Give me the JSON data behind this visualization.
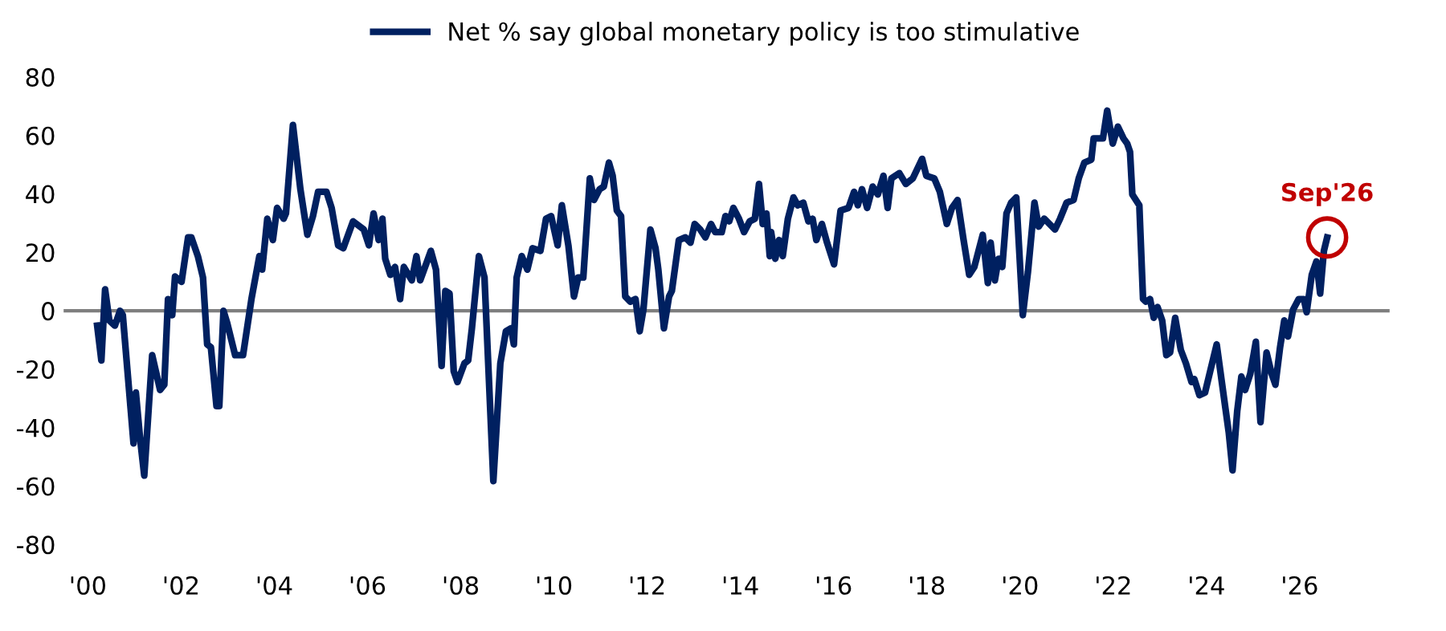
{
  "chart_data": {
    "type": "line",
    "series": [
      {
        "name": "Net % say global monetary policy is too stimulative",
        "color": "#002060",
        "x": [
          2000.2,
          2000.29,
          2000.37,
          2000.46,
          2000.58,
          2000.69,
          2000.75,
          2000.98,
          2001.03,
          2001.12,
          2001.21,
          2001.38,
          2001.55,
          2001.64,
          2001.72,
          2001.81,
          2001.87,
          2002.01,
          2002.15,
          2002.22,
          2002.36,
          2002.47,
          2002.56,
          2002.64,
          2002.76,
          2002.82,
          2002.91,
          2002.99,
          2003.16,
          2003.33,
          2003.51,
          2003.68,
          2003.74,
          2003.85,
          2003.97,
          2004.06,
          2004.2,
          2004.25,
          2004.4,
          2004.56,
          2004.71,
          2004.83,
          2004.94,
          2005.12,
          2005.23,
          2005.37,
          2005.48,
          2005.69,
          2005.92,
          2006.03,
          2006.13,
          2006.24,
          2006.32,
          2006.38,
          2006.49,
          2006.59,
          2006.7,
          2006.78,
          2006.95,
          2007.05,
          2007.13,
          2007.36,
          2007.47,
          2007.59,
          2007.67,
          2007.76,
          2007.85,
          2007.93,
          2008.08,
          2008.16,
          2008.24,
          2008.39,
          2008.51,
          2008.7,
          2008.85,
          2008.97,
          2009.08,
          2009.14,
          2009.2,
          2009.31,
          2009.43,
          2009.54,
          2009.71,
          2009.83,
          2009.94,
          2010.08,
          2010.17,
          2010.31,
          2010.43,
          2010.52,
          2010.63,
          2010.77,
          2010.86,
          2010.98,
          2011.07,
          2011.18,
          2011.26,
          2011.35,
          2011.44,
          2011.53,
          2011.64,
          2011.75,
          2011.84,
          2011.92,
          2012.07,
          2012.18,
          2012.24,
          2012.36,
          2012.47,
          2012.53,
          2012.68,
          2012.82,
          2012.93,
          2013.02,
          2013.14,
          2013.25,
          2013.37,
          2013.46,
          2013.6,
          2013.68,
          2013.76,
          2013.85,
          2013.97,
          2014.08,
          2014.2,
          2014.31,
          2014.4,
          2014.48,
          2014.56,
          2014.63,
          2014.66,
          2014.75,
          2014.83,
          2014.91,
          2015.02,
          2015.14,
          2015.23,
          2015.35,
          2015.46,
          2015.55,
          2015.63,
          2015.75,
          2015.86,
          2016.01,
          2016.15,
          2016.32,
          2016.44,
          2016.52,
          2016.61,
          2016.72,
          2016.84,
          2016.95,
          2017.07,
          2017.16,
          2017.24,
          2017.41,
          2017.55,
          2017.7,
          2017.9,
          2017.99,
          2018.16,
          2018.28,
          2018.43,
          2018.54,
          2018.66,
          2018.79,
          2018.91,
          2019.02,
          2019.2,
          2019.31,
          2019.37,
          2019.46,
          2019.54,
          2019.62,
          2019.71,
          2019.81,
          2019.92,
          2020.06,
          2020.17,
          2020.31,
          2020.4,
          2020.52,
          2020.75,
          2020.86,
          2021.0,
          2021.15,
          2021.26,
          2021.38,
          2021.53,
          2021.58,
          2021.78,
          2021.87,
          2021.99,
          2022.1,
          2022.22,
          2022.3,
          2022.36,
          2022.41,
          2022.56,
          2022.64,
          2022.7,
          2022.79,
          2022.87,
          2022.95,
          2023.05,
          2023.14,
          2023.22,
          2023.33,
          2023.45,
          2023.56,
          2023.68,
          2023.74,
          2023.85,
          2023.97,
          2024.08,
          2024.22,
          2024.33,
          2024.48,
          2024.56,
          2024.66,
          2024.75,
          2024.83,
          2024.94,
          2025.06,
          2025.16,
          2025.29,
          2025.4,
          2025.48,
          2025.58,
          2025.67,
          2025.75,
          2025.86,
          2025.98,
          2026.09,
          2026.15,
          2026.26,
          2026.36,
          2026.44,
          2026.52,
          2026.59
        ],
        "values": [
          -5.1,
          -17,
          7.3,
          -3.3,
          -5.1,
          0,
          -1.5,
          -45.4,
          -28,
          -43.6,
          -56.4,
          -15.2,
          -27.1,
          -25.3,
          4,
          -1.5,
          11.7,
          9.9,
          25.1,
          25.1,
          18.7,
          11.4,
          -11.5,
          -12.5,
          -32.6,
          -32.6,
          0,
          -4.2,
          -15.2,
          -15.2,
          4,
          18.7,
          14.1,
          31.5,
          24.2,
          35.2,
          31.5,
          33.3,
          63.6,
          41.6,
          26,
          32.4,
          40.7,
          40.7,
          35.2,
          22.4,
          21.4,
          30.6,
          27.8,
          22.4,
          33.3,
          24.2,
          31.5,
          17.8,
          12.3,
          15,
          4,
          15,
          10.4,
          18.7,
          10.4,
          20.5,
          14.1,
          -18.9,
          6.8,
          5.9,
          -20.7,
          -24.4,
          -18,
          -17,
          -6,
          18.7,
          11.4,
          -58.3,
          -18,
          -7,
          -6,
          -11.5,
          11.4,
          18.7,
          14.1,
          21.4,
          20.5,
          31.5,
          32.4,
          22.4,
          36.1,
          22.4,
          4.9,
          11.4,
          11.4,
          45.3,
          37.9,
          41.6,
          42.5,
          50.7,
          46.2,
          34.3,
          32.4,
          4.9,
          3.1,
          4,
          -7,
          0.4,
          27.8,
          21.4,
          14.1,
          -6,
          4.9,
          6.8,
          24.2,
          25.1,
          23.3,
          29.7,
          27.8,
          25.1,
          29.7,
          26.9,
          26.9,
          32.4,
          30.6,
          35.2,
          31.5,
          26.9,
          30.6,
          31.5,
          43.4,
          29.7,
          33.3,
          18.7,
          26.9,
          17.8,
          24.2,
          18.7,
          31.5,
          38.8,
          36.1,
          37,
          30.6,
          31.5,
          24.2,
          29.7,
          23.3,
          15.9,
          34.3,
          35.2,
          40.7,
          36.1,
          41.6,
          35.2,
          42.5,
          39.8,
          46.2,
          35.2,
          45.3,
          47.1,
          43.4,
          45.3,
          52,
          46.2,
          45.3,
          40.7,
          29.7,
          35.2,
          37.9,
          24.2,
          12.3,
          15,
          26,
          9.5,
          23.3,
          10.4,
          17.8,
          15,
          33.3,
          37,
          38.8,
          -1.5,
          13.2,
          37,
          28.8,
          31.5,
          27.8,
          31.5,
          37,
          37.9,
          45.3,
          50.7,
          51.7,
          59,
          59,
          68.5,
          57.2,
          63,
          59,
          57.2,
          54.4,
          39.8,
          36.1,
          4,
          3.1,
          4,
          -2.4,
          1.3,
          -3.3,
          -15.2,
          -14.3,
          -2.4,
          -13.4,
          -18,
          -24.4,
          -23.4,
          -28.9,
          -28,
          -20.7,
          -11.5,
          -24.4,
          -41.8,
          -54.6,
          -34.4,
          -22.5,
          -27.1,
          -21.6,
          -10.6,
          -38.1,
          -14.3,
          -21.6,
          -25.3,
          -12.5,
          -3.3,
          -8.8,
          0.4,
          4,
          4,
          -0.5,
          12.3,
          16.9,
          5.9,
          20.5,
          25.1
        ]
      }
    ],
    "xlim": [
      1999.48,
      2027.93
    ],
    "xticks": [
      {
        "value": 2000,
        "label": "'00"
      },
      {
        "value": 2002,
        "label": "'02"
      },
      {
        "value": 2004,
        "label": "'04"
      },
      {
        "value": 2006,
        "label": "'06"
      },
      {
        "value": 2008,
        "label": "'08"
      },
      {
        "value": 2010,
        "label": "'10"
      },
      {
        "value": 2012,
        "label": "'12"
      },
      {
        "value": 2014,
        "label": "'14"
      },
      {
        "value": 2016,
        "label": "'16"
      },
      {
        "value": 2018,
        "label": "'18"
      },
      {
        "value": 2020,
        "label": "'20"
      },
      {
        "value": 2022,
        "label": "'22"
      },
      {
        "value": 2024,
        "label": "'24"
      },
      {
        "value": 2026,
        "label": "'26"
      }
    ],
    "ylim": [
      -80,
      80
    ],
    "yticks": [
      -80,
      -60,
      -40,
      -20,
      0,
      20,
      40,
      60,
      80
    ],
    "ref_lines": [
      {
        "axis": "y",
        "value": 0,
        "color": "#7f7f7f"
      }
    ],
    "annotations": [
      {
        "text": "Sep'26",
        "x": 2026.59,
        "y": 25.1
      }
    ],
    "legend": "top",
    "grid": false,
    "marker": "none",
    "line_style": "solid"
  }
}
